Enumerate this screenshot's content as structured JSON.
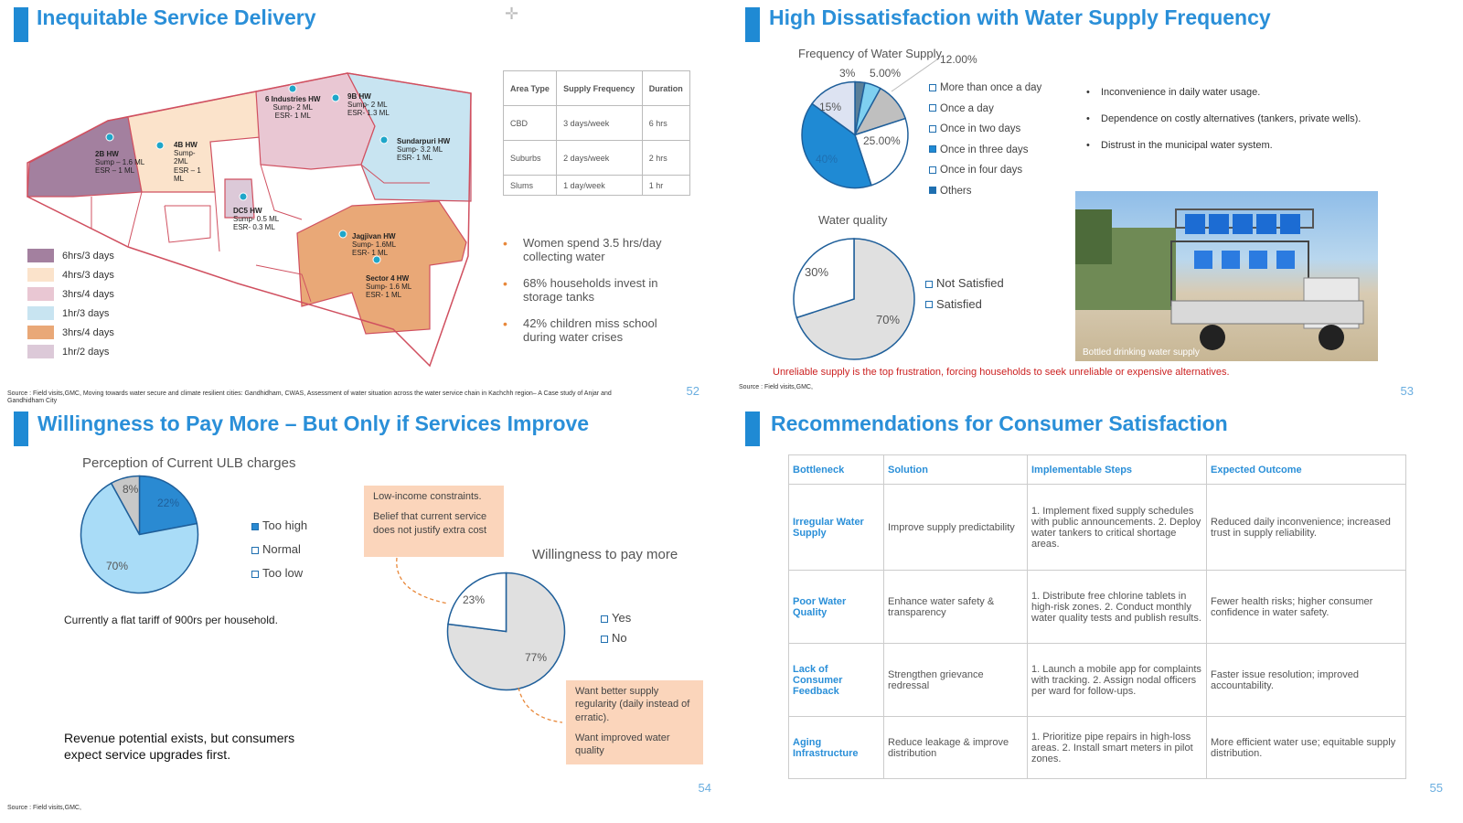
{
  "slide52": {
    "title": "Inequitable Service Delivery",
    "page": "52",
    "map_labels": [
      {
        "name": "2B HW",
        "l1": "Sump – 1.6 ML",
        "l2": "ESR – 1 ML"
      },
      {
        "name": "4B HW",
        "l1": "Sump-",
        "l2": "2ML",
        "l3": "ESR – 1",
        "l4": "ML"
      },
      {
        "name": "6 Industries HW",
        "l1": "Sump- 2 ML",
        "l2": "ESR- 1 ML"
      },
      {
        "name": "9B HW",
        "l1": "Sump- 2 ML",
        "l2": "ESR- 1.3 ML"
      },
      {
        "name": "Sundarpuri HW",
        "l1": "Sump- 3.2 ML",
        "l2": "ESR- 1 ML"
      },
      {
        "name": "DC5 HW",
        "l1": "Sump- 0.5 ML",
        "l2": "ESR- 0.3 ML"
      },
      {
        "name": "Jagjivan HW",
        "l1": "Sump- 1.6ML",
        "l2": "ESR- 1 ML"
      },
      {
        "name": "Sector 4 HW",
        "l1": "Sump- 1.6 ML",
        "l2": "ESR- 1 ML"
      }
    ],
    "legend": [
      {
        "label": "6hrs/3 days",
        "color": "#a3809f"
      },
      {
        "label": "4hrs/3 days",
        "color": "#fbe3cb"
      },
      {
        "label": "3hrs/4 days",
        "color": "#e9c7d3"
      },
      {
        "label": "1hr/3 days",
        "color": "#c8e4f1"
      },
      {
        "label": "3hrs/4 days",
        "color": "#e9a877"
      },
      {
        "label": "1hr/2 days",
        "color": "#dcc9d8"
      }
    ],
    "table": {
      "headers": [
        "Area Type",
        "Supply Frequency",
        "Duration"
      ],
      "rows": [
        [
          "CBD",
          "3 days/week",
          "6 hrs"
        ],
        [
          "Suburbs",
          "2 days/week",
          "2 hrs"
        ],
        [
          "Slums",
          "1 day/week",
          "1 hr"
        ]
      ]
    },
    "bullets": [
      "Women spend 3.5 hrs/day collecting water",
      "68% households invest in storage tanks",
      "42% children miss school during water crises"
    ],
    "source": "Source : Field visits,GMC, Moving towards water secure and climate resilient cities: Gandhidham, CWAS, Assessment of water situation across the water service chain in Kachchh region– A Case study of Anjar and Gandhidham City"
  },
  "slide53": {
    "title": "High Dissatisfaction with Water Supply Frequency",
    "page": "53",
    "freq_chart_title": "Frequency of Water Supply",
    "freq_legend": [
      "More than once a day",
      "Once a day",
      "Once in two days",
      "Once in three days",
      "Once in four days",
      "Others"
    ],
    "quality_chart_title": "Water quality",
    "quality_legend": [
      "Not Satisfied",
      "Satisfied"
    ],
    "bullets": [
      "Inconvenience in daily water usage.",
      "Dependence on costly alternatives (tankers, private wells).",
      "Distrust in the municipal water system."
    ],
    "photo_caption": "Bottled drinking water supply",
    "note": "Unreliable supply is the top frustration, forcing households to seek unreliable or expensive alternatives.",
    "note_color": "#cc2222",
    "source": "Source : Field visits,GMC,"
  },
  "slide54": {
    "title": "Willingness to Pay More – But Only if Services Improve",
    "page": "54",
    "charge_chart_title": "Perception of Current ULB charges",
    "charge_legend": [
      "Too high",
      "Normal",
      "Too low"
    ],
    "tariff_note": "Currently a flat tariff of 900rs per household.",
    "callout_top": [
      "Low-income constraints.",
      "Belief that current service does not justify extra cost"
    ],
    "wtp_chart_title": "Willingness to pay more",
    "wtp_legend": [
      "Yes",
      "No"
    ],
    "callout_bottom": [
      "Want better supply regularity (daily instead of erratic).",
      "Want improved water quality"
    ],
    "revenue_note": "Revenue potential exists, but consumers expect service upgrades first.",
    "source": "Source : Field visits,GMC,"
  },
  "slide55": {
    "title": "Recommendations for Consumer Satisfaction",
    "page": "55",
    "headers": [
      "Bottleneck",
      "Solution",
      "Implementable Steps",
      "Expected Outcome"
    ],
    "rows": [
      {
        "bottleneck": "Irregular Water Supply",
        "solution": "Improve supply predictability",
        "steps": "1. Implement fixed supply schedules with public announcements. 2. Deploy water tankers to critical shortage areas.",
        "outcome": "Reduced daily inconvenience; increased trust in supply reliability."
      },
      {
        "bottleneck": "Poor Water Quality",
        "solution": "Enhance water safety & transparency",
        "steps": "1. Distribute free chlorine tablets in high-risk zones. 2. Conduct monthly water quality tests and publish results.",
        "outcome": "Fewer health risks; higher consumer confidence in water safety."
      },
      {
        "bottleneck": "Lack of Consumer Feedback",
        "solution": "Strengthen grievance redressal",
        "steps": "1. Launch a mobile app for complaints with tracking. 2. Assign nodal officers per ward for follow-ups.",
        "outcome": "Faster issue resolution; improved accountability."
      },
      {
        "bottleneck": "Aging Infrastructure",
        "solution": "Reduce leakage & improve distribution",
        "steps": "1. Prioritize pipe repairs in high-loss areas. 2. Install smart meters in pilot zones.",
        "outcome": "More efficient water use; equitable supply distribution."
      }
    ]
  },
  "chart_data": [
    {
      "type": "pie",
      "title": "Frequency of Water Supply",
      "categories": [
        "More than once a day",
        "Once a day",
        "Once in two days",
        "Once in three days",
        "Once in four days",
        "Others"
      ],
      "values": [
        3,
        5,
        12,
        25,
        40,
        15
      ],
      "labels": [
        "3%",
        "5.00%",
        "12.00%",
        "25.00%",
        "40%",
        "15%"
      ],
      "colors": [
        "#5b7f98",
        "#7fd0f0",
        "#bfbfbf",
        "#ffffff",
        "#1f8ad4",
        "#dde3f2"
      ]
    },
    {
      "type": "pie",
      "title": "Water quality",
      "categories": [
        "Not Satisfied",
        "Satisfied"
      ],
      "values": [
        70,
        30
      ],
      "labels": [
        "70%",
        "30%"
      ],
      "colors": [
        "#e0e0e0",
        "#ffffff"
      ]
    },
    {
      "type": "pie",
      "title": "Perception of Current ULB charges",
      "categories": [
        "Too high",
        "Normal",
        "Too low"
      ],
      "values": [
        22,
        70,
        8
      ],
      "labels": [
        "22%",
        "70%",
        "8%"
      ],
      "colors": [
        "#2a8ad2",
        "#a9dcf7",
        "#c8c8c8"
      ]
    },
    {
      "type": "pie",
      "title": "Willingness to pay more",
      "categories": [
        "Yes",
        "No"
      ],
      "values": [
        23,
        77
      ],
      "labels": [
        "23%",
        "77%"
      ],
      "colors": [
        "#ffffff",
        "#e0e0e0"
      ]
    }
  ]
}
